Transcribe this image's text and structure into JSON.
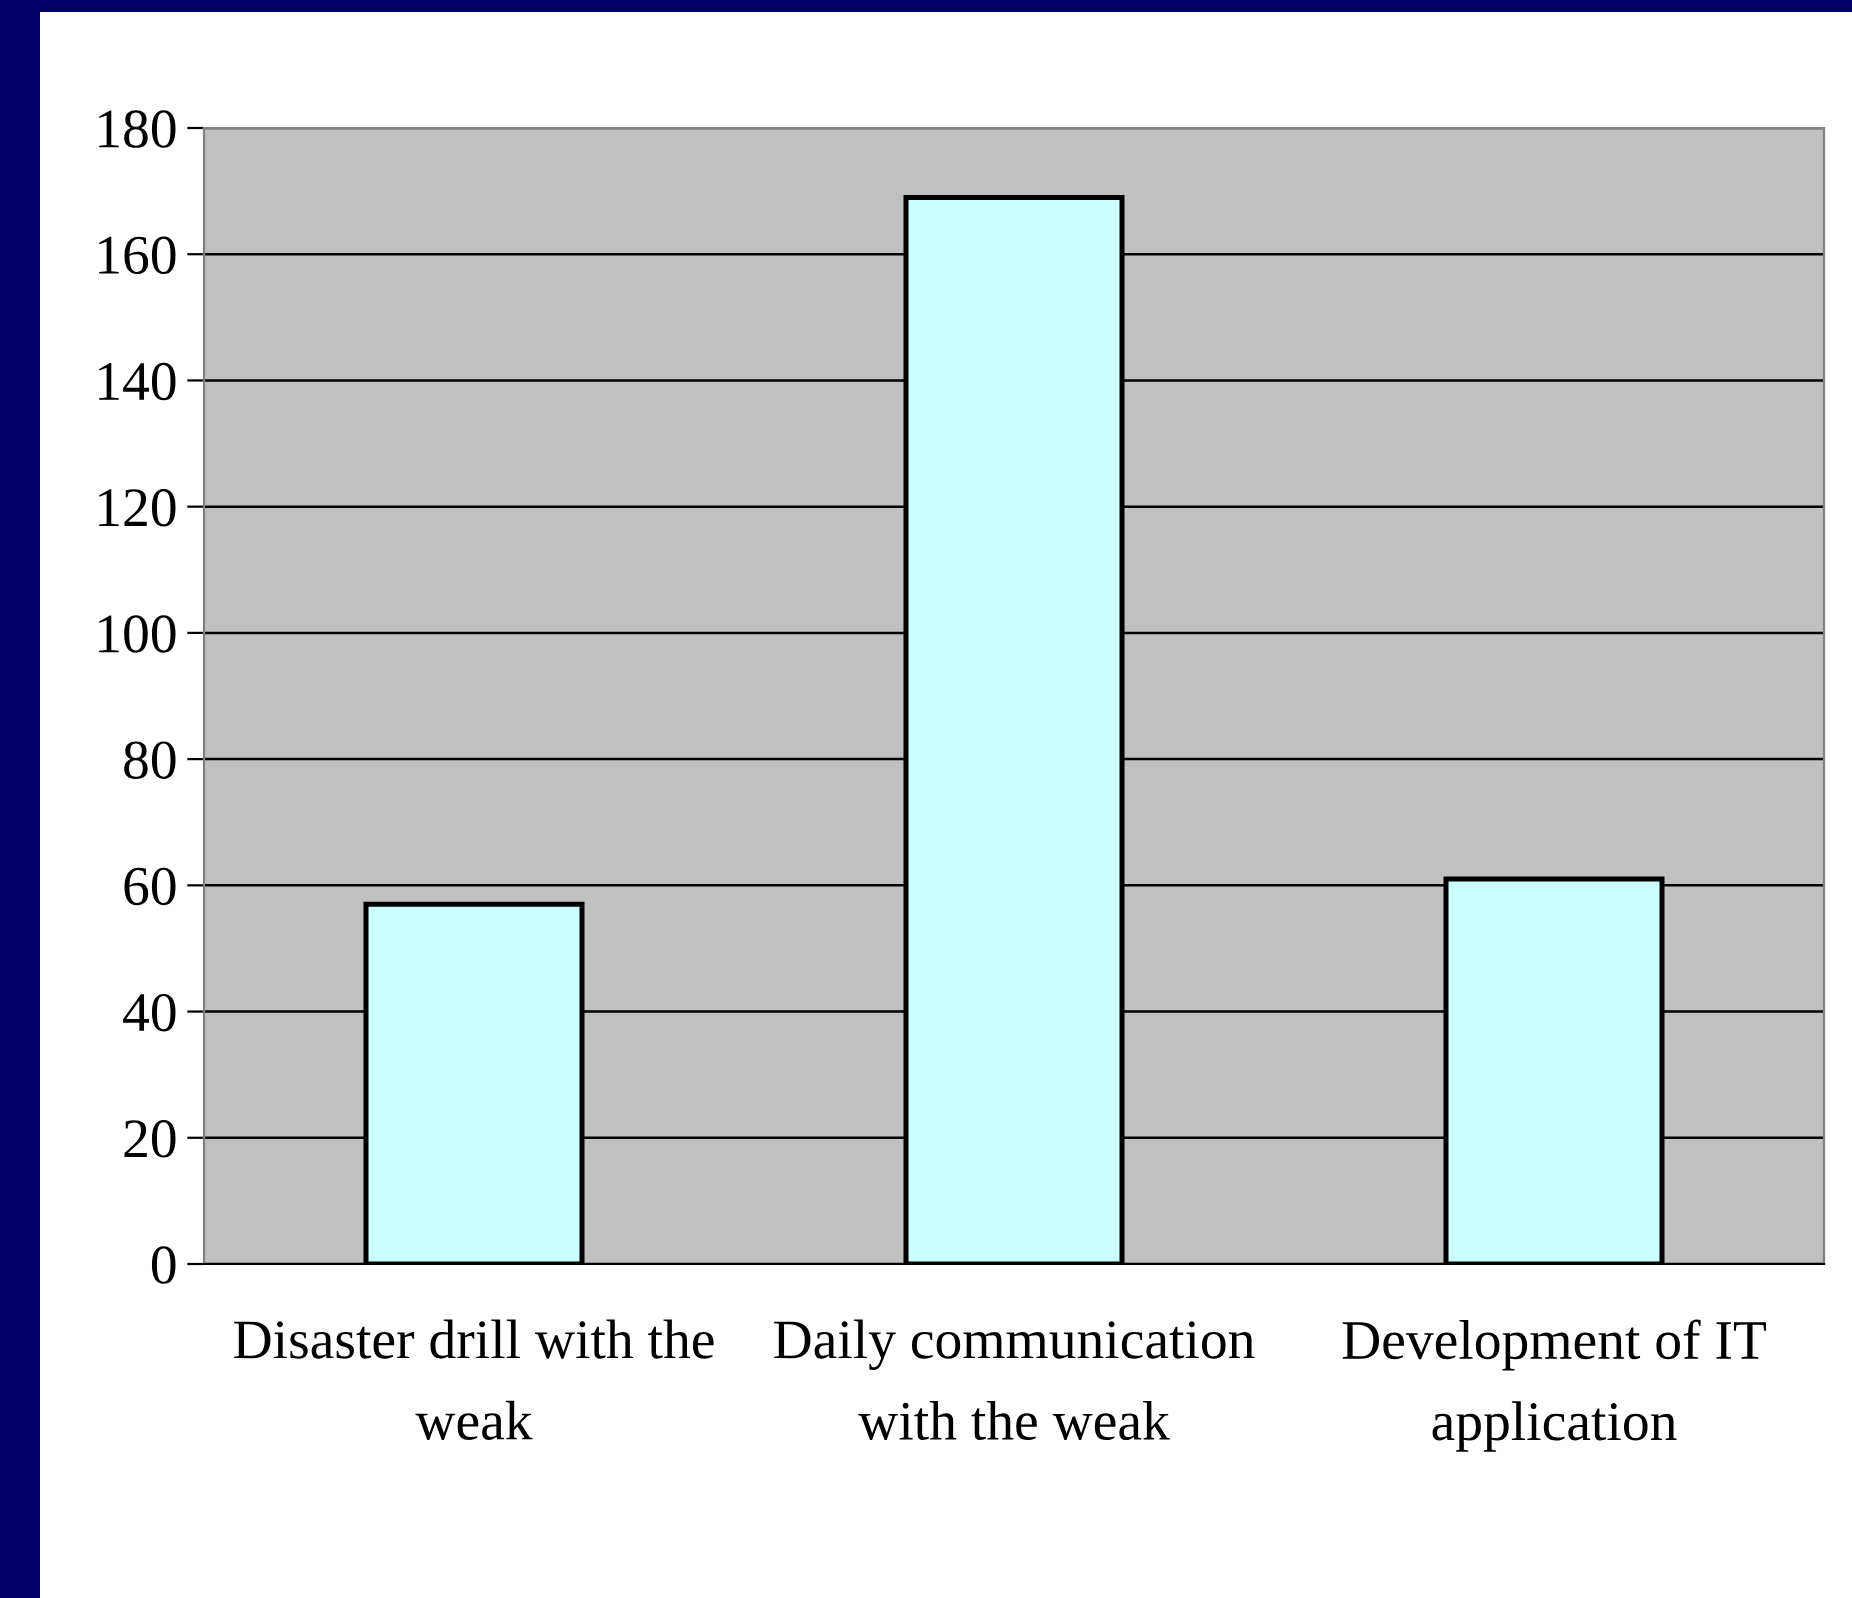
{
  "chart_data": {
    "type": "bar",
    "categories": [
      "Disaster drill with the\nweak",
      "Daily communication\nwith the weak",
      "Development of IT\napplication"
    ],
    "values": [
      57,
      169,
      61
    ],
    "color": "#ccffff",
    "ylim": [
      0,
      180
    ],
    "yticks": [
      0,
      20,
      40,
      60,
      80,
      100,
      120,
      140,
      160,
      180
    ],
    "grid": "y"
  }
}
